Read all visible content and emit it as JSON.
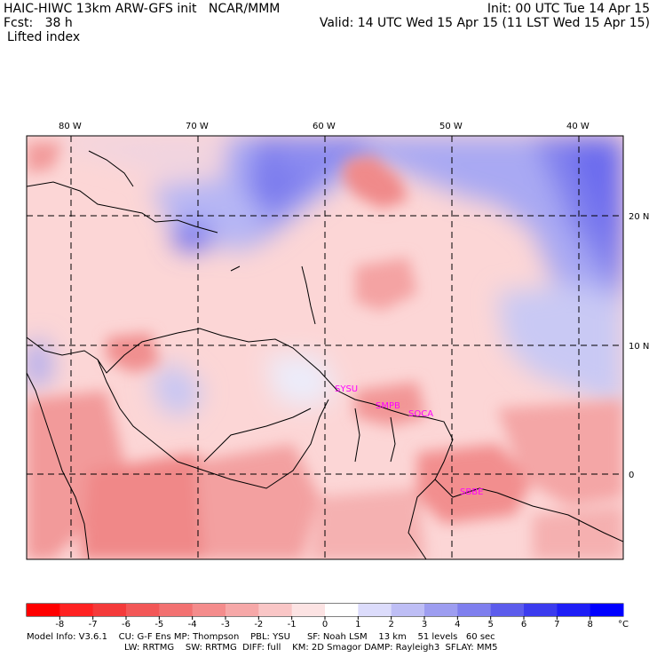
{
  "header": {
    "model_line": "HAIC-HIWC 13km ARW-GFS init   NCAR/MMM",
    "forecast_line": "Fcst:   38 h",
    "field_line": "Lifted index",
    "init_line": "Init: 00 UTC Tue 14 Apr 15",
    "valid_line": "Valid: 14 UTC Wed 15 Apr 15 (11 LST Wed 15 Apr 15)"
  },
  "map": {
    "lon_labels": [
      "80 W",
      "70 W",
      "60 W",
      "50 W",
      "40 W"
    ],
    "lat_labels": [
      "20 N",
      "10 N",
      "0"
    ],
    "stations": [
      "SYSU",
      "SMPB",
      "SOCA",
      "SBBE"
    ],
    "colors": {
      "base": "#fcd3d3",
      "cool": "#7b7bf2",
      "warm": "#f08c8c",
      "station": "#ff00ff"
    }
  },
  "legend": {
    "labels": [
      "-8",
      "-7",
      "-6",
      "-5",
      "-4",
      "-3",
      "-2",
      "-1",
      "0",
      "1",
      "2",
      "3",
      "4",
      "5",
      "6",
      "7",
      "8"
    ],
    "unit": "°C",
    "colors": [
      "#ff0000",
      "#ff2222",
      "#f43a3a",
      "#f25757",
      "#f27171",
      "#f48c8c",
      "#f6a8a8",
      "#f9c6c6",
      "#fce3e3",
      "#ffffff",
      "#dcdcfb",
      "#bebef5",
      "#9d9df0",
      "#7f7fee",
      "#5c5cec",
      "#3b3bee",
      "#1e1ef6",
      "#0000ff"
    ]
  },
  "footer": {
    "line1": "Model Info: V3.6.1    CU: G-F Ens MP: Thompson    PBL: YSU      SF: Noah LSM    13 km    51 levels   60 sec",
    "line2": "LW: RRTMG    SW: RRTMG  DIFF: full    KM: 2D Smagor DAMP: Rayleigh3  SFLAY: MM5"
  }
}
